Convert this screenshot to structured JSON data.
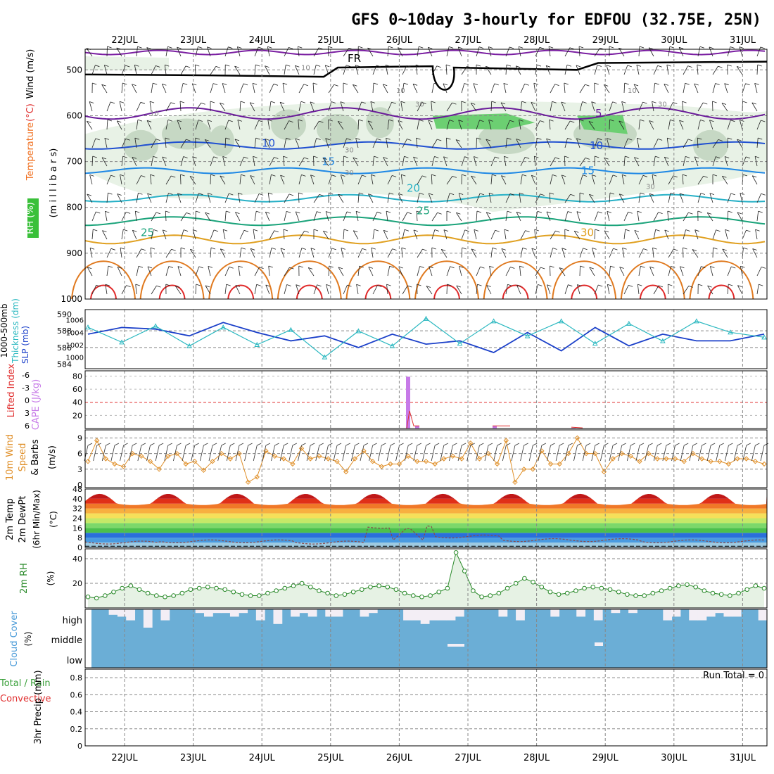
{
  "title": "GFS 0~10day 3-hourly for EDFOU (32.75E, 25N)",
  "date_labels": [
    "22JUL",
    "23JUL",
    "24JUL",
    "25JUL",
    "26JUL",
    "27JUL",
    "28JUL",
    "29JUL",
    "30JUL",
    "31JUL"
  ],
  "colors": {
    "rh_fill": "#e8f2e6",
    "rh_mid": "#c6d8c4",
    "rh_high": "#6ccf72",
    "fr_line": "#000000",
    "t_neg": "#7b1fa2",
    "t_5": "#6a1b9a",
    "t_10": "#1f4fd1",
    "t_15": "#1e88e5",
    "t_20": "#26b0c6",
    "t_25": "#1aa37a",
    "t_30": "#e0a020",
    "t_35": "#e07a20",
    "t_40": "#e02828",
    "slp": "#1a3fc9",
    "thick": "#2ab8c0",
    "cape": "#c77ae8",
    "li": "#e03030",
    "wind10": "#e0902a",
    "rh2m": "#2a8a2a",
    "cloud": "#6baed6",
    "cloud_clear": "#f3eef5"
  },
  "panels": {
    "upper": {
      "left_label_parts": [
        {
          "text": "RH (%)",
          "color": "#3a8a3a"
        },
        {
          "text": "Temperature",
          "color": "#f07020"
        },
        {
          "text": "(°C)",
          "color": "#e03030"
        },
        {
          "text": "Wind (m/s)",
          "color": "#000000"
        }
      ],
      "ylabel": "(m i l l i b a r s)",
      "ticks": [
        "500",
        "600",
        "700",
        "800",
        "900",
        "1000"
      ],
      "temp_labels": [
        "5",
        "10",
        "15",
        "20",
        "25",
        "25",
        "30",
        "10",
        "15",
        "FR"
      ],
      "rh_labels": [
        "10",
        "10",
        "10",
        "30",
        "30",
        "30",
        "30",
        "10",
        "30"
      ]
    },
    "slp": {
      "label_a": "1000-500mb",
      "label_b": "Thickness (dm)",
      "label_c": "SLP (mb)",
      "thick_ticks": [
        "590",
        "588",
        "586",
        "584"
      ],
      "slp_ticks": [
        "1006",
        "1004",
        "1002",
        "1000"
      ]
    },
    "cape": {
      "label_li": "Lifted Index",
      "label_cape": "CAPE (J/kg)",
      "li_ticks": [
        "-6",
        "-3",
        "0",
        "3",
        "6"
      ],
      "cape_ticks": [
        "80",
        "60",
        "40",
        "20"
      ]
    },
    "wind": {
      "label_a": "10m Wind",
      "label_b": "Speed",
      "label_c": "& Barbs",
      "label_d": "(m/s)",
      "ticks": [
        "9",
        "6",
        "3",
        "0"
      ]
    },
    "temp2m": {
      "label_a": "2m Temp",
      "label_b": "2m DewPt",
      "label_c": "(6hr Min/Max)",
      "label_d": "(°C)",
      "ticks": [
        "48",
        "40",
        "32",
        "24",
        "16",
        "8",
        "0"
      ]
    },
    "rh2m": {
      "label_a": "2m RH",
      "label_b": "(%)",
      "ticks": [
        "40",
        "20"
      ]
    },
    "cloud": {
      "label_a": "Cloud Cover",
      "label_b": "(%)",
      "levels": [
        "high",
        "middle",
        "low"
      ]
    },
    "precip": {
      "label_a": "Total / Rain",
      "label_b": "Convective",
      "label_c": "3hr Precip (mm)",
      "ticks": [
        "0.8",
        "0.6",
        "0.4",
        "0.2",
        "0"
      ],
      "run_total": "Run Total = 0"
    }
  },
  "chart_data": [
    {
      "type": "line",
      "title": "1000-500mb Thickness (dm) / SLP (mb)",
      "x": [
        "21JUL21",
        "22JUL00",
        "22JUL12",
        "23JUL00",
        "23JUL12",
        "24JUL00",
        "24JUL12",
        "25JUL00",
        "25JUL12",
        "26JUL00",
        "26JUL12",
        "27JUL00",
        "27JUL12",
        "28JUL00",
        "28JUL12",
        "29JUL00",
        "29JUL12",
        "30JUL00",
        "30JUL12",
        "31JUL00",
        "31JUL12"
      ],
      "series": [
        {
          "name": "Thickness (dm)",
          "values": [
            587.6,
            588.4,
            588.2,
            587.4,
            589.0,
            587.8,
            586.8,
            587.4,
            586.0,
            587.6,
            586.4,
            586.8,
            585.4,
            587.8,
            585.6,
            588.4,
            586.2,
            587.6,
            586.8,
            586.8,
            587.6
          ]
        },
        {
          "name": "SLP (mb)",
          "values": [
            1004.8,
            1002.4,
            1005.0,
            1001.8,
            1004.8,
            1002.0,
            1004.4,
            1000.0,
            1004.2,
            1001.8,
            1006.2,
            1002.2,
            1005.8,
            1003.4,
            1005.8,
            1002.2,
            1005.4,
            1002.6,
            1005.8,
            1004.0,
            1003.2
          ]
        }
      ]
    },
    {
      "type": "bar",
      "title": "CAPE (J/kg) / Lifted Index",
      "categories": [
        "26JUL03",
        "26JUL06",
        "27JUL09",
        "28JUL12"
      ],
      "series": [
        {
          "name": "CAPE (J/kg)",
          "values": [
            79,
            4,
            4,
            1
          ]
        },
        {
          "name": "Lifted Index",
          "values": [
            4,
            5.6,
            6,
            6
          ]
        }
      ]
    },
    {
      "type": "line",
      "title": "10m Wind Speed (m/s)",
      "x_step_hours": 3,
      "x_start": "21JUL 18Z",
      "series": [
        {
          "name": "Speed (m/s)",
          "values": [
            4.5,
            8.5,
            5,
            4,
            3.5,
            6,
            5.5,
            4.5,
            3,
            5.5,
            6,
            4,
            4.5,
            2.8,
            4.5,
            6,
            5,
            6,
            0.5,
            1.5,
            6.5,
            5.5,
            5,
            4,
            7,
            5,
            5.5,
            5,
            4.5,
            2.5,
            5,
            6.5,
            4.5,
            3.5,
            4,
            4,
            5.5,
            4.5,
            4.5,
            4,
            5,
            5.5,
            5,
            8,
            5,
            6,
            4,
            8.5,
            0.5,
            3,
            3,
            6.5,
            4,
            4,
            6,
            9,
            6,
            6,
            2.5,
            5,
            6,
            5.5,
            4.5,
            6,
            5,
            5,
            5,
            4.5,
            6,
            5,
            4.5,
            4.5,
            4,
            5,
            5,
            4.5,
            4
          ]
        }
      ]
    },
    {
      "type": "area",
      "title": "2m Temp / 2m DewPt (°C)",
      "x": [
        "22JUL",
        "23JUL",
        "24JUL",
        "25JUL",
        "26JUL",
        "27JUL",
        "28JUL",
        "29JUL",
        "30JUL",
        "31JUL"
      ],
      "series": [
        {
          "name": "2m Temp Max",
          "values": [
            44,
            44,
            44,
            44,
            44,
            45,
            45,
            45,
            44,
            44
          ]
        },
        {
          "name": "2m Temp Min",
          "values": [
            30,
            30,
            30,
            30,
            30,
            30,
            30,
            30,
            30,
            30
          ]
        },
        {
          "name": "2m DewPt",
          "values": [
            4,
            5,
            5,
            4,
            17,
            9,
            6,
            6,
            5,
            5
          ]
        }
      ],
      "ylim": [
        0,
        48
      ]
    },
    {
      "type": "line",
      "title": "2m RH (%)",
      "x_step_hours": 3,
      "x_start": "21JUL 18Z",
      "series": [
        {
          "name": "2m RH",
          "values": [
            9,
            8,
            10,
            13,
            16,
            18,
            15,
            12,
            10,
            9,
            10,
            12,
            15,
            16,
            17,
            16,
            15,
            13,
            11,
            10,
            10,
            12,
            14,
            16,
            18,
            20,
            17,
            14,
            12,
            10,
            11,
            13,
            15,
            17,
            18,
            17,
            15,
            12,
            10,
            9,
            10,
            13,
            16,
            45,
            30,
            14,
            9,
            10,
            12,
            16,
            20,
            24,
            21,
            17,
            13,
            11,
            12,
            14,
            16,
            17,
            16,
            15,
            13,
            11,
            10,
            10,
            12,
            14,
            16,
            18,
            19,
            17,
            14,
            12,
            11,
            10,
            12,
            15,
            18,
            16
          ]
        }
      ]
    },
    {
      "type": "bar",
      "title": "Cloud Cover (%)",
      "series": [
        {
          "name": "high cloud",
          "values": [
            100,
            100,
            70,
            60,
            40,
            100,
            0,
            100,
            40,
            100,
            100,
            100,
            80,
            60,
            80,
            80,
            60,
            80,
            100,
            40,
            100,
            20,
            100,
            60,
            80,
            60,
            100,
            60,
            60,
            100,
            100,
            60,
            80,
            100,
            100,
            100,
            40,
            40,
            20,
            40,
            40,
            40,
            60,
            100,
            100,
            100,
            100,
            60,
            100,
            40,
            100,
            100,
            100,
            60,
            100,
            100,
            60,
            100,
            40,
            100,
            80,
            100,
            80,
            100,
            100,
            100,
            40,
            60,
            100,
            40,
            40,
            60,
            80,
            60,
            60,
            100,
            100,
            40
          ]
        }
      ]
    },
    {
      "type": "bar",
      "title": "3hr Precip (mm)",
      "series": [
        {
          "name": "Total / Rain",
          "values": [
            0,
            0,
            0,
            0,
            0,
            0,
            0,
            0,
            0,
            0
          ]
        }
      ],
      "ylim": [
        0,
        0.9
      ]
    }
  ]
}
